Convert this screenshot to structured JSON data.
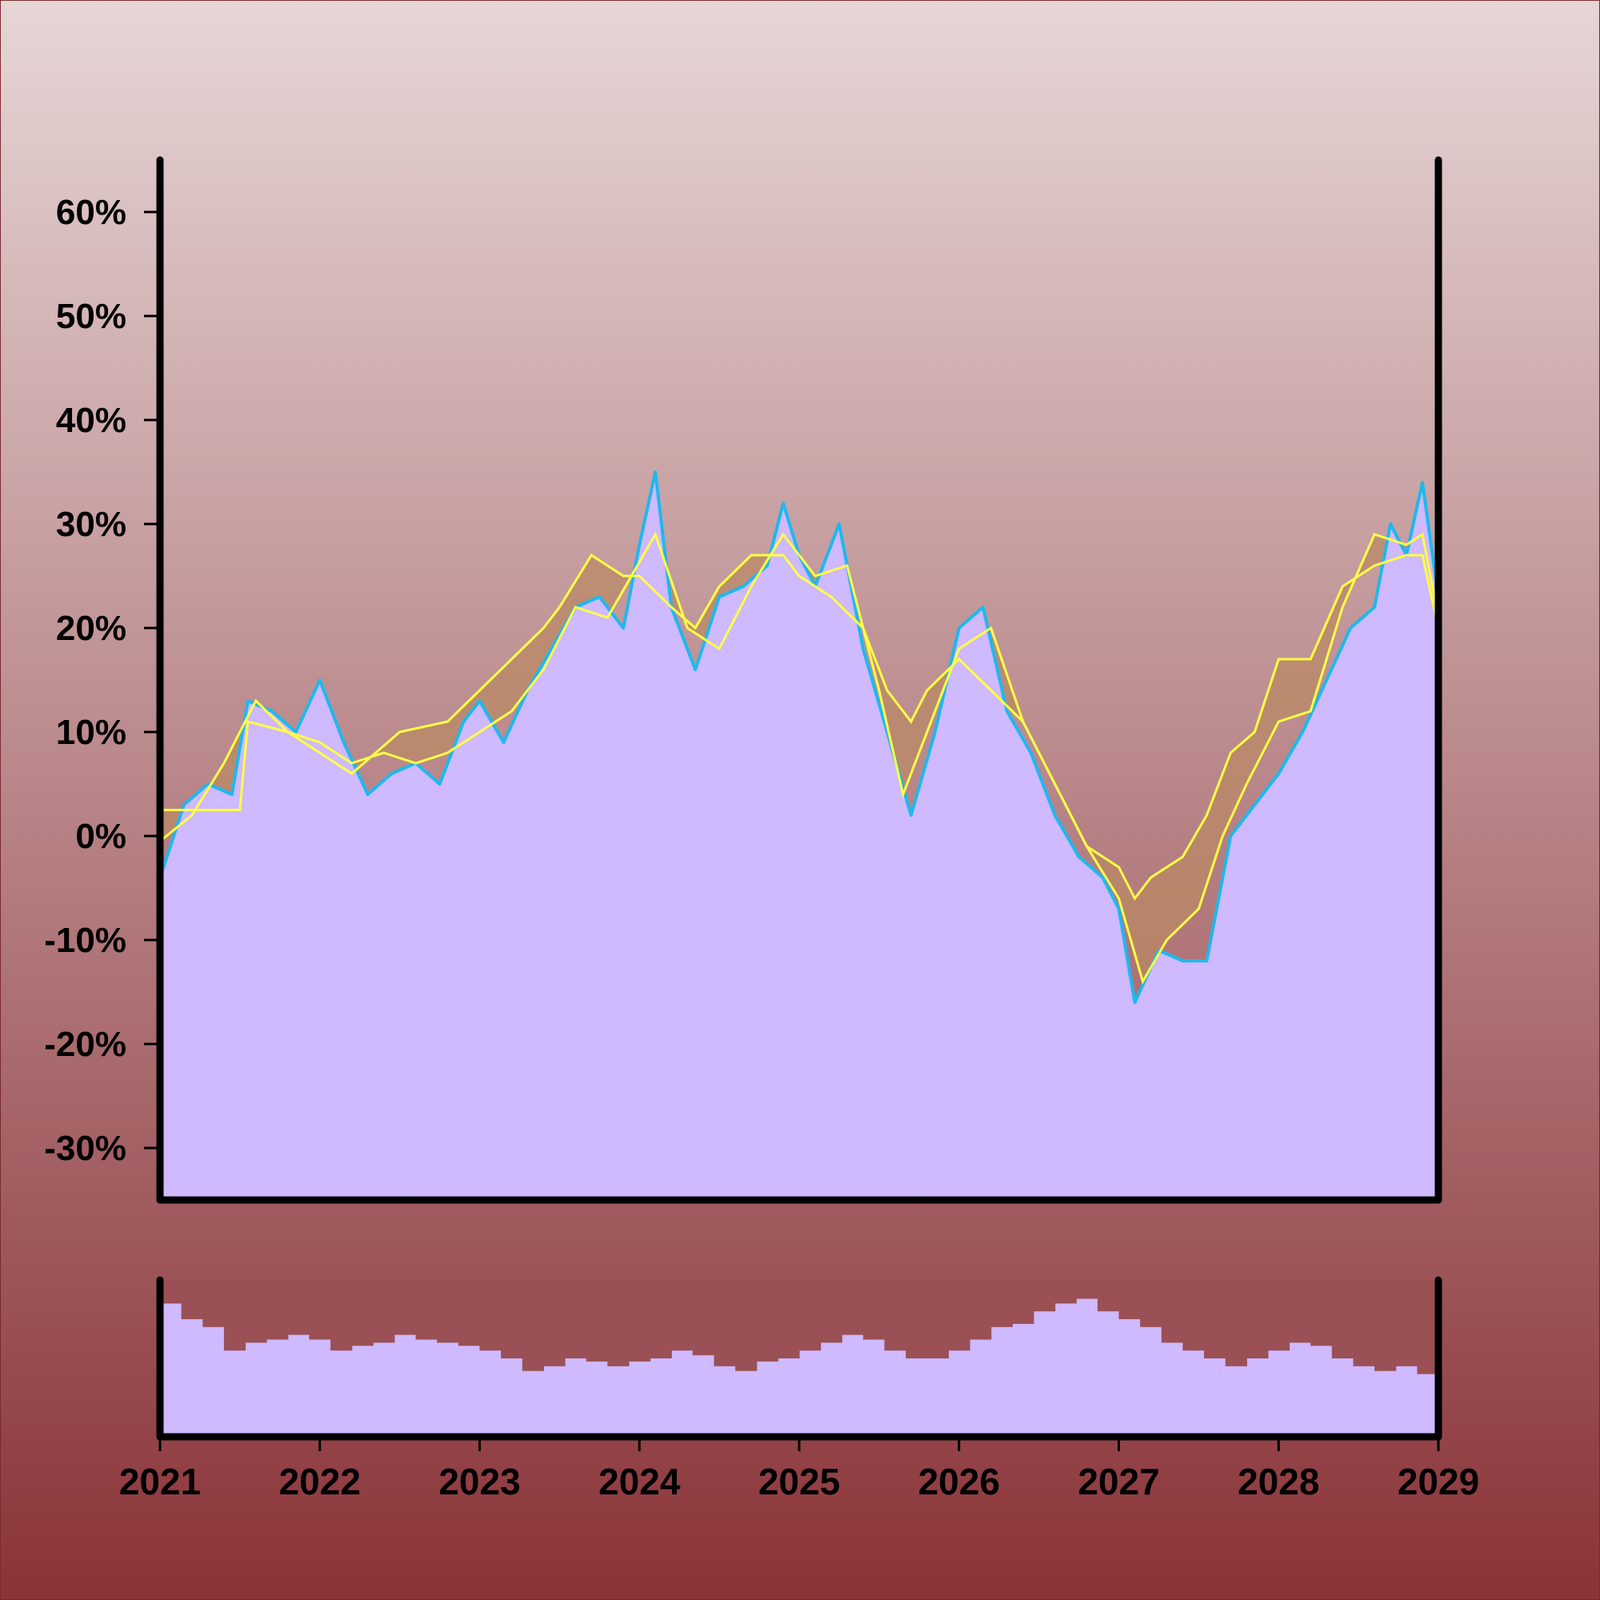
{
  "colors": {
    "background_top": "#e6d6d6",
    "background_bottom": "#8a3338",
    "fill": "#cfb9ff",
    "price_line": "#1fb8ee",
    "band_line": "#ffff44",
    "band_fill": "#b98a66",
    "volume_gap": "#9a5055"
  },
  "chart_data": [
    {
      "type": "area",
      "panel": "price",
      "ylim": [
        -35,
        65
      ],
      "yticks": [
        -30,
        -20,
        -10,
        0,
        10,
        20,
        30,
        40,
        50,
        60
      ],
      "ytick_labels": [
        "-30%",
        "-20%",
        "-10%",
        "0%",
        "10%",
        "20%",
        "30%",
        "40%",
        "50%",
        "60%"
      ],
      "xlim": [
        2021,
        2029
      ],
      "grid": false,
      "series": [
        {
          "role": "price",
          "x": [
            2021.0,
            2021.15,
            2021.3,
            2021.45,
            2021.55,
            2021.7,
            2021.85,
            2022.0,
            2022.15,
            2022.3,
            2022.45,
            2022.6,
            2022.75,
            2022.9,
            2023.0,
            2023.15,
            2023.3,
            2023.45,
            2023.6,
            2023.75,
            2023.9,
            2024.0,
            2024.1,
            2024.2,
            2024.35,
            2024.5,
            2024.65,
            2024.8,
            2024.9,
            2025.0,
            2025.1,
            2025.25,
            2025.4,
            2025.55,
            2025.7,
            2025.85,
            2026.0,
            2026.15,
            2026.3,
            2026.45,
            2026.6,
            2026.75,
            2026.9,
            2027.0,
            2027.1,
            2027.25,
            2027.4,
            2027.55,
            2027.7,
            2027.85,
            2028.0,
            2028.15,
            2028.3,
            2028.45,
            2028.6,
            2028.7,
            2028.8,
            2028.9,
            2029.0
          ],
          "y": [
            -4,
            3,
            5,
            4,
            13,
            12,
            10,
            15,
            9,
            4,
            6,
            7,
            5,
            11,
            13,
            9,
            14,
            18,
            22,
            23,
            20,
            28,
            35,
            22,
            16,
            23,
            24,
            26,
            32,
            27,
            24,
            30,
            18,
            10,
            2,
            10,
            20,
            22,
            12,
            8,
            2,
            -2,
            -4,
            -7,
            -16,
            -11,
            -12,
            -12,
            0,
            3,
            6,
            10,
            15,
            20,
            22,
            30,
            27,
            34,
            23
          ]
        },
        {
          "role": "band_upper",
          "x": [
            2021.0,
            2021.5,
            2021.55,
            2021.8,
            2022.0,
            2022.2,
            2022.5,
            2022.8,
            2023.0,
            2023.2,
            2023.4,
            2023.5,
            2023.7,
            2023.9,
            2024.0,
            2024.2,
            2024.35,
            2024.5,
            2024.7,
            2024.9,
            2025.0,
            2025.2,
            2025.4,
            2025.55,
            2025.7,
            2025.8,
            2026.0,
            2026.2,
            2026.4,
            2026.6,
            2026.8,
            2027.0,
            2027.1,
            2027.2,
            2027.4,
            2027.55,
            2027.7,
            2027.85,
            2028.0,
            2028.2,
            2028.4,
            2028.6,
            2028.8,
            2028.9,
            2029.0
          ],
          "y": [
            2.5,
            2.5,
            11,
            10,
            8,
            6,
            10,
            11,
            14,
            17,
            20,
            22,
            27,
            25,
            25,
            22,
            20,
            24,
            27,
            27,
            25,
            23,
            20,
            14,
            11,
            14,
            17,
            14,
            11,
            5,
            -1,
            -3,
            -6,
            -4,
            -2,
            2,
            8,
            10,
            17,
            17,
            24,
            26,
            27,
            27,
            20
          ]
        },
        {
          "role": "band_lower",
          "x": [
            2021.0,
            2021.2,
            2021.4,
            2021.6,
            2021.8,
            2022.0,
            2022.2,
            2022.4,
            2022.6,
            2022.8,
            2023.0,
            2023.2,
            2023.4,
            2023.6,
            2023.8,
            2023.95,
            2024.1,
            2024.3,
            2024.5,
            2024.7,
            2024.9,
            2025.1,
            2025.3,
            2025.5,
            2025.65,
            2025.8,
            2026.0,
            2026.2,
            2026.4,
            2026.6,
            2026.8,
            2027.0,
            2027.15,
            2027.3,
            2027.5,
            2027.65,
            2027.8,
            2028.0,
            2028.2,
            2028.4,
            2028.6,
            2028.8,
            2028.9,
            2029.0
          ],
          "y": [
            -0.5,
            2,
            7,
            13,
            10,
            9,
            7,
            8,
            7,
            8,
            10,
            12,
            16,
            22,
            21,
            25,
            29,
            20,
            18,
            24,
            29,
            25,
            26,
            14,
            4,
            10,
            18,
            20,
            11,
            5,
            -1,
            -6,
            -14,
            -10,
            -7,
            0,
            5,
            11,
            12,
            22,
            29,
            28,
            29,
            21
          ]
        }
      ]
    },
    {
      "type": "bar",
      "panel": "volume",
      "xticks": [
        2021,
        2022,
        2023,
        2024,
        2025,
        2026,
        2027,
        2028,
        2029
      ],
      "xtick_labels": [
        "2021",
        "2022",
        "2023",
        "2024",
        "2025",
        "2026",
        "2027",
        "2028",
        "2029"
      ],
      "x_range": [
        2021,
        2029
      ],
      "values": [
        0.85,
        0.75,
        0.7,
        0.55,
        0.6,
        0.62,
        0.65,
        0.62,
        0.55,
        0.58,
        0.6,
        0.65,
        0.62,
        0.6,
        0.58,
        0.55,
        0.5,
        0.42,
        0.45,
        0.5,
        0.48,
        0.45,
        0.48,
        0.5,
        0.55,
        0.52,
        0.45,
        0.42,
        0.48,
        0.5,
        0.55,
        0.6,
        0.65,
        0.62,
        0.55,
        0.5,
        0.5,
        0.55,
        0.62,
        0.7,
        0.72,
        0.8,
        0.85,
        0.88,
        0.8,
        0.75,
        0.7,
        0.6,
        0.55,
        0.5,
        0.45,
        0.5,
        0.55,
        0.6,
        0.58,
        0.5,
        0.45,
        0.42,
        0.45,
        0.4
      ]
    }
  ]
}
